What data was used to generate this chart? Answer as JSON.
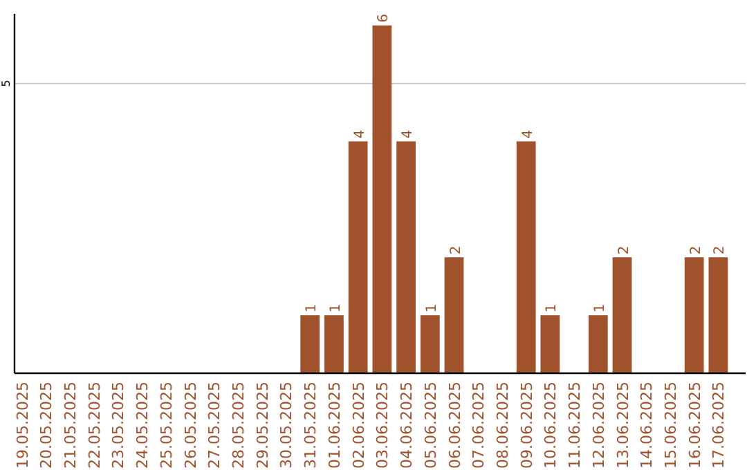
{
  "chart_data": {
    "type": "bar",
    "categories": [
      "19.05.2025",
      "20.05.2025",
      "21.05.2025",
      "22.05.2025",
      "23.05.2025",
      "24.05.2025",
      "25.05.2025",
      "26.05.2025",
      "27.05.2025",
      "28.05.2025",
      "29.05.2025",
      "30.05.2025",
      "31.05.2025",
      "01.06.2025",
      "02.06.2025",
      "03.06.2025",
      "04.06.2025",
      "05.06.2025",
      "06.06.2025",
      "07.06.2025",
      "08.06.2025",
      "09.06.2025",
      "10.06.2025",
      "11.06.2025",
      "12.06.2025",
      "13.06.2025",
      "14.06.2025",
      "15.06.2025",
      "16.06.2025",
      "17.06.2025"
    ],
    "values": [
      null,
      null,
      null,
      null,
      null,
      null,
      null,
      null,
      null,
      null,
      null,
      null,
      1,
      1,
      4,
      6,
      4,
      1,
      2,
      null,
      null,
      4,
      1,
      null,
      1,
      2,
      null,
      null,
      2,
      2
    ],
    "data_labels": true,
    "color": "#a0522d",
    "ylim": [
      0,
      6.2
    ],
    "yticks": [
      5
    ],
    "grid": "y"
  }
}
